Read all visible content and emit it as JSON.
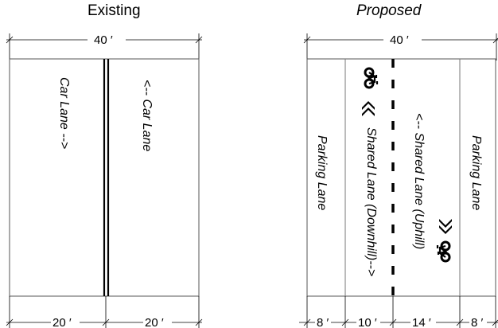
{
  "titles": {
    "existing": "Existing",
    "proposed": "Proposed"
  },
  "existing": {
    "total_width": "40 ′",
    "lanes": [
      {
        "label": "Car Lane -->",
        "width": "20 ′"
      },
      {
        "label": "<-- Car Lane",
        "width": "20 ′"
      }
    ]
  },
  "proposed": {
    "total_width": "40 ′",
    "lanes": [
      {
        "label": "Parking Lane",
        "width": "8 ′"
      },
      {
        "label": "Shared Lane (Downhill)-->",
        "width": "10 ′"
      },
      {
        "label": "<-- Shared Lane (Uphill)",
        "width": "14 ′"
      },
      {
        "label": "Parking Lane",
        "width": "8 ′"
      }
    ]
  },
  "icons": [
    "bicycle-icon",
    "chevron-icon"
  ],
  "colors": {
    "line": "#000000",
    "border": "#555555"
  }
}
